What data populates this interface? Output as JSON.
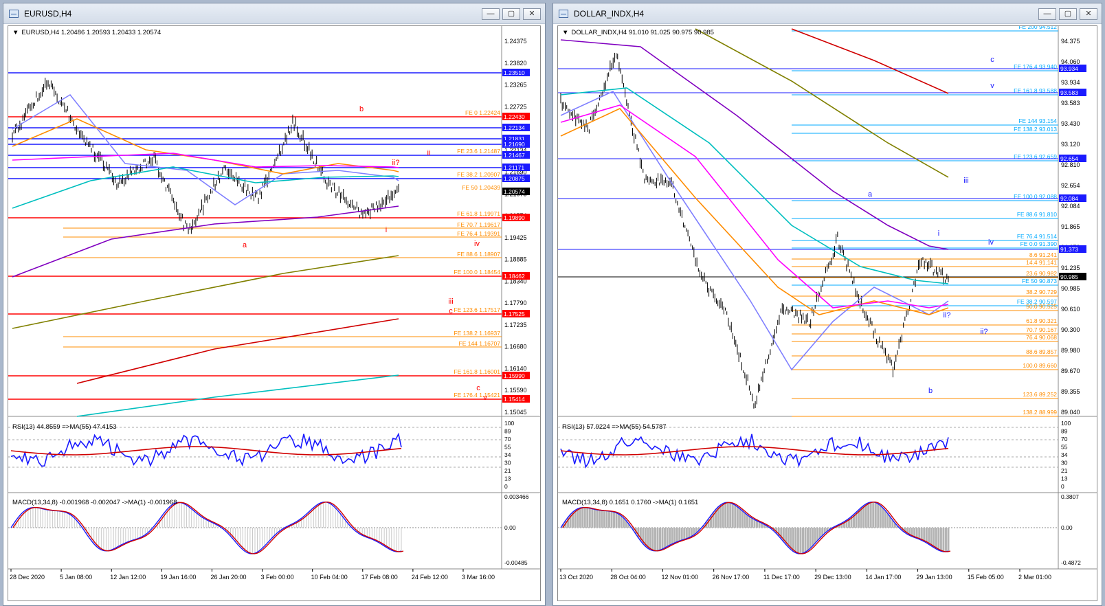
{
  "left": {
    "window_title": "EURUSD,H4",
    "header": "EURUSD,H4  1.20486 1.20593 1.20433 1.20574",
    "rsi_header": "RSI(13) 44.8559  =>MA(55) 47.4153",
    "macd_header": "MACD(13,34,8) -0.001968 -0.002047  ->MA(1) -0.001968",
    "price_axis": [
      "1.24375",
      "1.23820",
      "1.23265",
      "1.22725",
      "1.22430",
      "1.22134",
      "1.21690",
      "1.21075",
      "1.20574",
      "1.19425",
      "1.18885",
      "1.18340",
      "1.17790",
      "1.17235",
      "1.16680",
      "1.16140",
      "1.15590",
      "1.15045"
    ],
    "rsi_axis": [
      "100",
      "89",
      "70",
      "55",
      "34",
      "30",
      "21",
      "13",
      "0"
    ],
    "macd_axis": [
      "0.003466",
      "0.00",
      "-0.00485"
    ],
    "time_axis": [
      "28 Dec 2020",
      "5 Jan 08:00",
      "12 Jan 12:00",
      "19 Jan 16:00",
      "26 Jan 20:00",
      "3 Feb 00:00",
      "10 Feb 04:00",
      "17 Feb 08:00",
      "24 Feb 12:00",
      "3 Mar 16:00"
    ],
    "hlines": [
      {
        "price": "1.23510",
        "color": "#1a1aff",
        "label": "1.23510",
        "fe": ""
      },
      {
        "price": "1.22430",
        "color": "#ff0000",
        "label": "1.22430",
        "fe": "FE 0 1.22424"
      },
      {
        "price": "1.22134",
        "color": "#1a1aff",
        "label": "1.22134",
        "fe": ""
      },
      {
        "price": "1.21831",
        "color": "#1a1aff",
        "label": "1.21831",
        "fe": ""
      },
      {
        "price": "1.21690",
        "color": "#1a1aff",
        "label": "1.21690",
        "fe": ""
      },
      {
        "price": "1.21467",
        "color": "#1a1aff",
        "label": "1.21467",
        "fe": "FE 23.6 1.21487"
      },
      {
        "price": "1.21171",
        "color": "#1a1aff",
        "label": "1.21171",
        "fe": ""
      },
      {
        "price": "1.20875",
        "color": "#1a1aff",
        "label": "1.20875",
        "fe": "FE 38.2 1.20907"
      },
      {
        "price": "1.20574",
        "color": "#000000",
        "label": "1.20574",
        "fe": "FE 50 1.20439"
      },
      {
        "price": "1.19890",
        "color": "#ff0000",
        "label": "1.19890",
        "fe": "FE 61.8 1.19971"
      },
      {
        "price": "1.18462",
        "color": "#ff0000",
        "label": "1.18462",
        "fe": "FE 100.0 1.18454"
      },
      {
        "price": "1.17525",
        "color": "#ff0000",
        "label": "1.17525",
        "fe": "FE 123.6 1.17517"
      },
      {
        "price": "1.15990",
        "color": "#ff0000",
        "label": "1.15990",
        "fe": "FE 161.8 1.16001"
      },
      {
        "price": "1.15414",
        "color": "#ff0000",
        "label": "1.15414",
        "fe": "FE 176.4 1.15421"
      }
    ],
    "fe_extra": [
      "FE 70.7 1.19617",
      "FE 76.4 1.19391",
      "FE 88.6 1.18907",
      "FE 138.2 1.16937",
      "FE 144 1.16707"
    ],
    "wave_labels": [
      "b",
      "a",
      "ii",
      "ii?",
      "i",
      "iv",
      "iii",
      "c",
      "c",
      "v"
    ]
  },
  "right": {
    "window_title": "DOLLAR_INDX,H4",
    "header": "DOLLAR_INDX,H4  91.010 91.025 90.975 90.985",
    "rsi_header": "RSI(13) 57.9224  =>MA(55) 54.5787",
    "macd_header": "MACD(13,34,8) 0.1651 0.1760  ->MA(1) 0.1651",
    "price_axis": [
      "94.375",
      "94.060",
      "93.934",
      "93.583",
      "93.430",
      "93.120",
      "92.810",
      "92.654",
      "92.084",
      "91.865",
      "91.373",
      "91.235",
      "90.985",
      "90.610",
      "90.300",
      "89.980",
      "89.670",
      "89.355",
      "89.040"
    ],
    "rsi_axis": [
      "100",
      "89",
      "70",
      "55",
      "34",
      "30",
      "21",
      "13",
      "0"
    ],
    "macd_axis": [
      "0.3807",
      "0.00",
      "-0.4872"
    ],
    "time_axis": [
      "13 Oct 2020",
      "28 Oct 04:00",
      "12 Nov 01:00",
      "26 Nov 17:00",
      "11 Dec 17:00",
      "29 Dec 13:00",
      "14 Jan 17:00",
      "29 Jan 13:00",
      "15 Feb 05:00",
      "2 Mar 01:00"
    ],
    "fe_labels": [
      "FE 200 94.512",
      "FE 176.4 93.940",
      "FE 161.8 93.588",
      "FE 144 93.154",
      "FE 138.2 93.013",
      "FE 123.6 92.659",
      "FE 100.0 92.088",
      "FE 88.6 91.810",
      "FE 76.4 91.514",
      "FE 0.0 91.390",
      "8.6 91.241",
      "14.4 91.141",
      "23.6 90.982",
      "FE 50 90.873",
      "38.2 90.729",
      "FE 38.2 90.597",
      "50.0 90.525",
      "61.8 90.321",
      "70.7 90.167",
      "76.4 90.068",
      "88.6 89.857",
      "100.0 89.660",
      "123.6 89.252",
      "138.2 88.999"
    ],
    "boxed": [
      {
        "label": "93.934",
        "color": "#1a1aff"
      },
      {
        "label": "93.583",
        "color": "#1a1aff"
      },
      {
        "label": "92.654",
        "color": "#1a1aff"
      },
      {
        "label": "92.084",
        "color": "#1a1aff"
      },
      {
        "label": "91.373",
        "color": "#1a1aff"
      },
      {
        "label": "90.985",
        "color": "#000000"
      }
    ],
    "wave_labels": [
      "c",
      "v",
      "iii",
      "a",
      "i",
      "iv",
      "ii?",
      "ii?",
      "b"
    ]
  },
  "buttons": {
    "minimize": "—",
    "restore": "▢",
    "close": "✕"
  }
}
